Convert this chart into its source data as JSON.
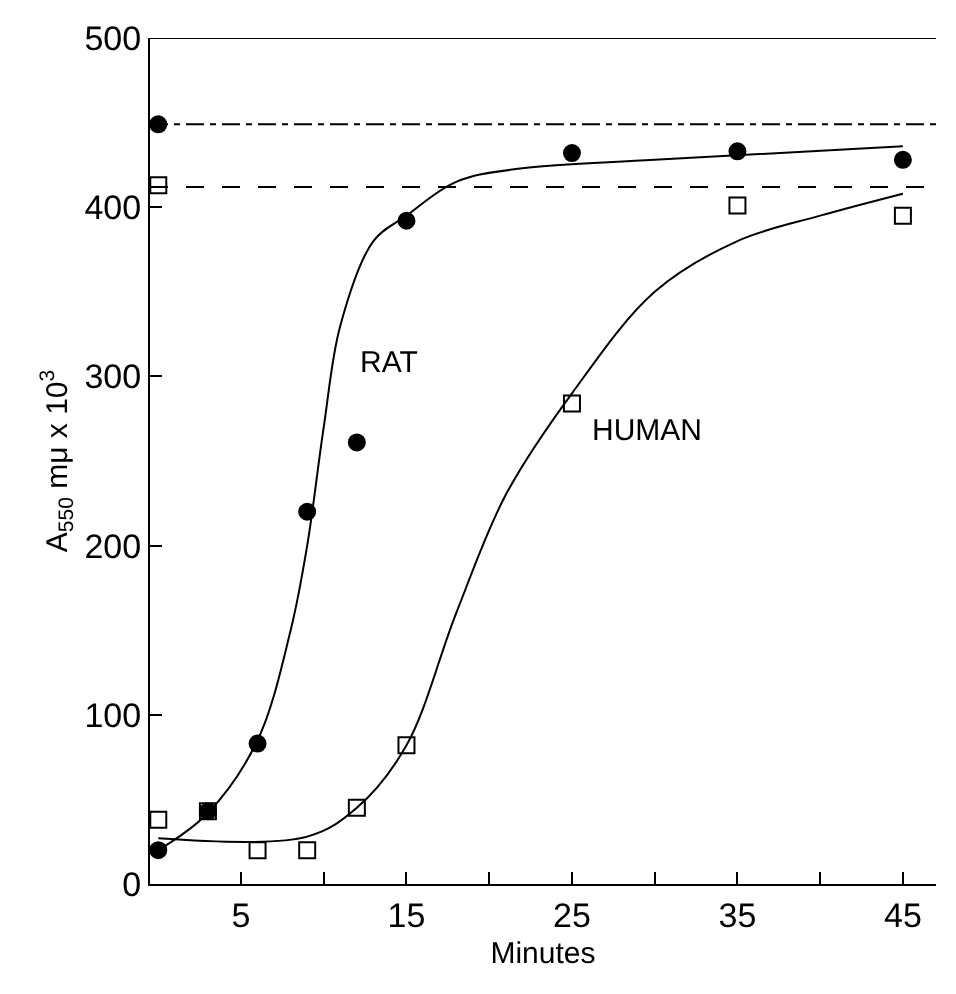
{
  "chart_data": {
    "type": "scatter",
    "xlabel": "Minutes",
    "ylabel": "A$_{550}$ mμ x 10$^{3}$",
    "xlim": [
      -0.5,
      47
    ],
    "ylim": [
      0,
      500
    ],
    "xticks": [
      {
        "value": 5,
        "label": "5"
      },
      {
        "value": 10,
        "label": null
      },
      {
        "value": 15,
        "label": "15"
      },
      {
        "value": 20,
        "label": null
      },
      {
        "value": 25,
        "label": "25"
      },
      {
        "value": 30,
        "label": null
      },
      {
        "value": 35,
        "label": "35"
      },
      {
        "value": 40,
        "label": null
      },
      {
        "value": 45,
        "label": "45"
      }
    ],
    "yticks": [
      0,
      100,
      200,
      300,
      400,
      500
    ],
    "legend": false,
    "series": [
      {
        "marker": "circle",
        "color": "#000000",
        "x": [
          0,
          0,
          3,
          6,
          9,
          12,
          15,
          25,
          35,
          45
        ],
        "values": [
          449,
          20,
          43,
          83,
          220,
          261,
          392,
          432,
          433,
          428
        ]
      },
      {
        "marker": "square",
        "color": "#000000",
        "x": [
          0,
          0,
          3,
          6,
          9,
          12,
          15,
          25,
          35,
          45
        ],
        "values": [
          413,
          38,
          43,
          20,
          20,
          45,
          82,
          284,
          401,
          395
        ]
      },
      {
        "type": "line",
        "name": "RAT",
        "color": "#000000",
        "x": [
          0,
          3,
          6,
          8,
          9,
          10,
          11,
          13,
          15,
          18,
          22,
          30,
          45
        ],
        "values": [
          20,
          42,
          85,
          150,
          200,
          270,
          330,
          380,
          395,
          415,
          423,
          428,
          436
        ]
      },
      {
        "type": "line",
        "name": "HUMAN",
        "color": "#000000",
        "x": [
          0,
          9,
          12,
          15,
          18,
          21,
          25,
          30,
          35,
          40,
          45
        ],
        "values": [
          27,
          28,
          45,
          82,
          160,
          230,
          290,
          350,
          380,
          395,
          408
        ]
      }
    ],
    "ref_lines": [
      {
        "axis": "y",
        "value": 500,
        "line_style": "solid"
      },
      {
        "axis": "y",
        "value": 449,
        "line_style": "dashdot"
      },
      {
        "axis": "y",
        "value": 412,
        "line_style": "dashed"
      }
    ]
  }
}
